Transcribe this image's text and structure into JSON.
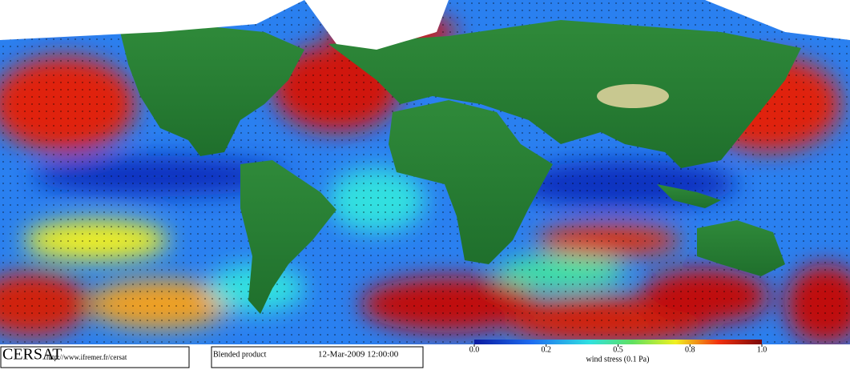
{
  "logo": {
    "name": "CERSAT",
    "url": "http://www.ifremer.fr/cersat"
  },
  "product": {
    "name": "Blended product",
    "date": "12-Mar-2009 12:00:00"
  },
  "colorbar": {
    "lim": [
      0,
      1
    ],
    "ticks": [
      {
        "value": 0,
        "label": "0.0"
      },
      0.2,
      0.5,
      0.8,
      {
        "value": 1,
        "label": "1.0"
      }
    ],
    "label": "wind stress (0.1 Pa)"
  }
}
